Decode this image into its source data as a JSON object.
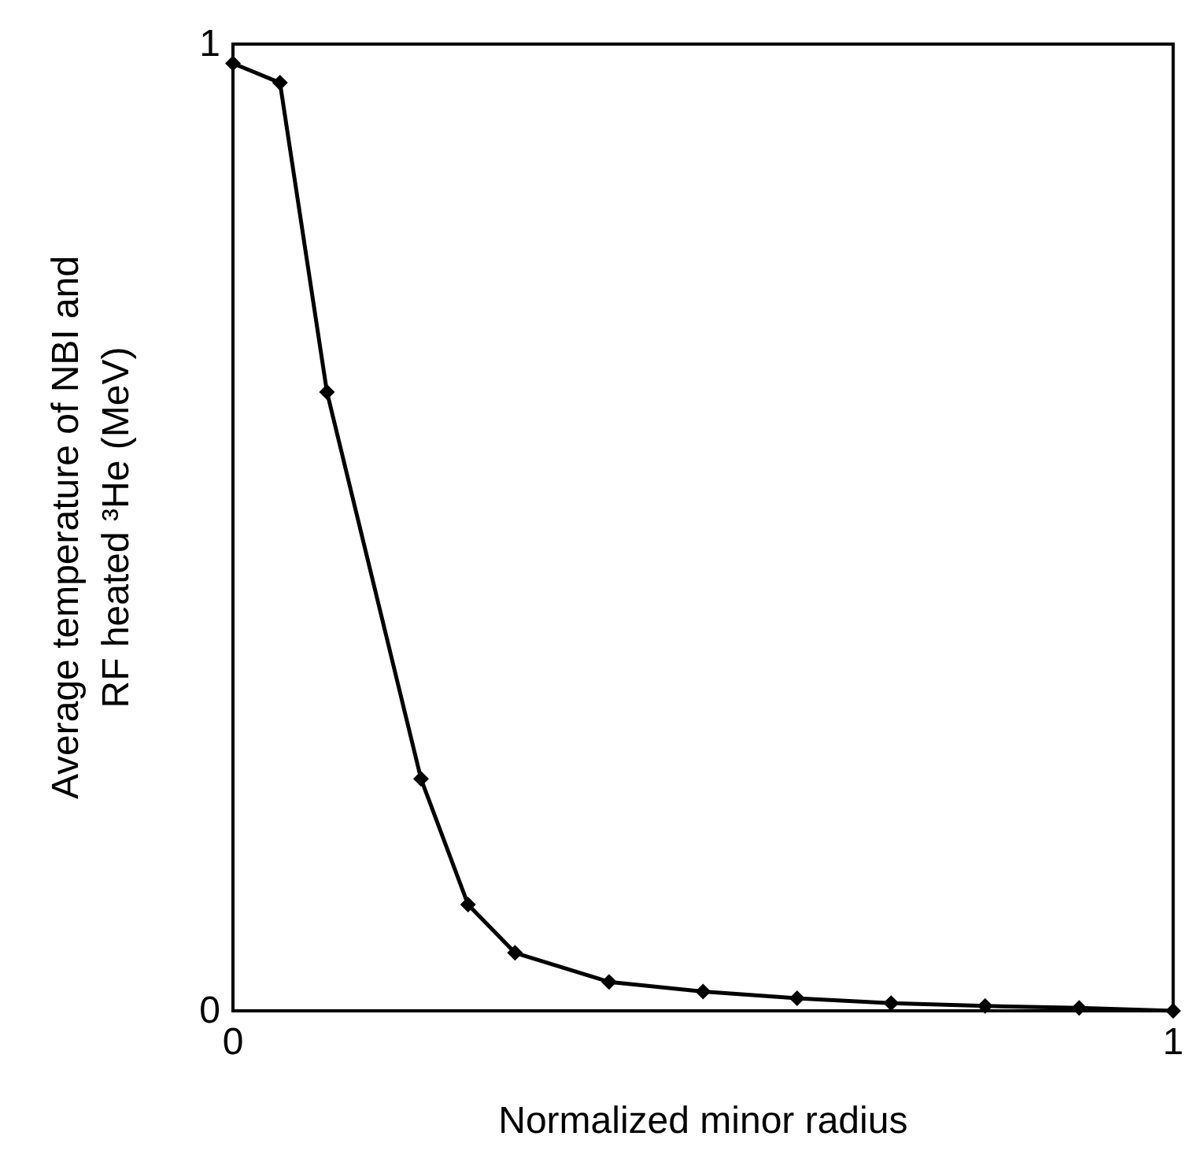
{
  "chart_data": {
    "type": "line",
    "xlabel": "Normalized minor radius",
    "ylabel": "Average temperature of NBI and\nRF heated ³He (MeV)",
    "x": [
      0,
      0.05,
      0.1,
      0.2,
      0.25,
      0.3,
      0.4,
      0.5,
      0.6,
      0.7,
      0.8,
      0.9,
      1.0
    ],
    "series": [
      {
        "color": "#000000",
        "values": [
          0.98,
          0.96,
          0.64,
          0.24,
          0.11,
          0.06,
          0.03,
          0.02,
          0.013,
          0.008,
          0.005,
          0.003,
          0
        ]
      }
    ],
    "xlim": [
      0,
      1
    ],
    "ylim": [
      0,
      1
    ],
    "xticks": [
      0,
      1
    ],
    "yticks": [
      0,
      1
    ],
    "grid": false,
    "marker": "diamond",
    "line_style": "solid"
  }
}
